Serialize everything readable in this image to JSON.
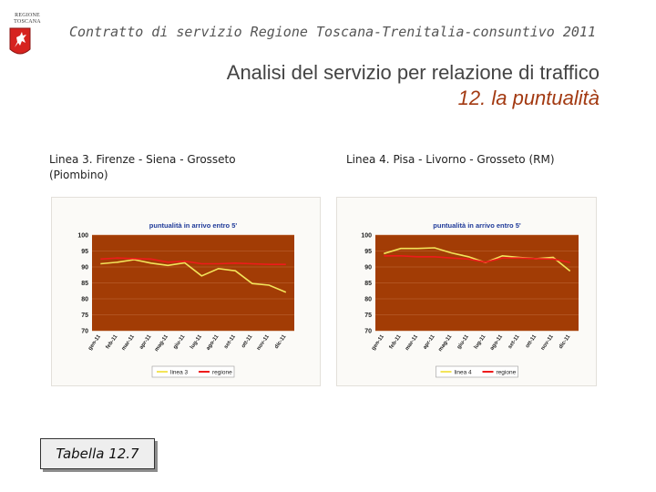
{
  "header": {
    "logo_text_line1": "REGIONE",
    "logo_text_line2": "TOSCANA",
    "title": "Contratto di servizio Regione Toscana-Trenitalia-consuntivo 2011"
  },
  "main": {
    "title": "Analisi del servizio per relazione di traffico",
    "subtitle": "12. la puntualità"
  },
  "captions": {
    "left": "Linea 3. Firenze - Siena - Grosseto (Piombino)",
    "right": "Linea 4. Pisa - Livorno - Grosseto (RM)"
  },
  "footer": {
    "table_label": "Tabella 12.7"
  },
  "colors": {
    "plot_bg": "#a23c05",
    "line_series": "#f3e45a",
    "regione_series": "#ee1b1b",
    "title_text": "#1f3a99",
    "subtitle": "#a33a12"
  },
  "chart_data": [
    {
      "type": "line",
      "title": "puntualità in arrivo entro 5'",
      "categories": [
        "gen-11",
        "feb-11",
        "mar-11",
        "apr-11",
        "mag-11",
        "giu-11",
        "lug-11",
        "ago-11",
        "set-11",
        "ott-11",
        "nov-11",
        "dic-11"
      ],
      "ylim": [
        70,
        100
      ],
      "yticks": [
        70,
        75,
        80,
        85,
        90,
        95,
        100
      ],
      "grid": true,
      "legend_position": "bottom",
      "series": [
        {
          "name": "linea 3",
          "values": [
            91.0,
            91.5,
            92.3,
            91.2,
            90.5,
            91.3,
            87.2,
            89.5,
            88.8,
            84.8,
            84.3,
            82.1
          ]
        },
        {
          "name": "regione",
          "values": [
            92.5,
            92.8,
            92.6,
            92.5,
            91.5,
            91.8,
            91.0,
            91.0,
            91.2,
            91.0,
            90.8,
            90.8
          ]
        }
      ]
    },
    {
      "type": "line",
      "title": "puntualità in arrivo entro 5'",
      "categories": [
        "gen-11",
        "feb-11",
        "mar-11",
        "apr-11",
        "mag-11",
        "giu-11",
        "lug-11",
        "ago-11",
        "set-11",
        "ott-11",
        "nov-11",
        "dic-11"
      ],
      "ylim": [
        70,
        100
      ],
      "yticks": [
        70,
        75,
        80,
        85,
        90,
        95,
        100
      ],
      "grid": true,
      "legend_position": "bottom",
      "series": [
        {
          "name": "linea 4",
          "values": [
            94.2,
            95.8,
            95.8,
            96.0,
            94.4,
            93.2,
            91.4,
            93.5,
            93.0,
            92.6,
            93.0,
            88.7
          ]
        },
        {
          "name": "regione",
          "values": [
            93.5,
            93.5,
            93.2,
            93.2,
            92.8,
            92.5,
            91.5,
            92.8,
            92.8,
            92.6,
            92.5,
            91.4
          ]
        }
      ]
    }
  ]
}
